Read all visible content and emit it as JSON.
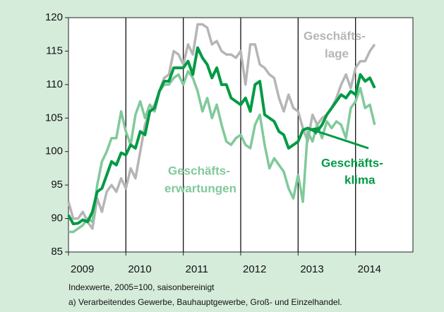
{
  "chart_data": {
    "type": "line",
    "x": [
      2009,
      2009.083,
      2009.167,
      2009.25,
      2009.333,
      2009.417,
      2009.5,
      2009.583,
      2009.667,
      2009.75,
      2009.833,
      2009.917,
      2010,
      2010.083,
      2010.167,
      2010.25,
      2010.333,
      2010.417,
      2010.5,
      2010.583,
      2010.667,
      2010.75,
      2010.833,
      2010.917,
      2011,
      2011.083,
      2011.167,
      2011.25,
      2011.333,
      2011.417,
      2011.5,
      2011.583,
      2011.667,
      2011.75,
      2011.833,
      2011.917,
      2012,
      2012.083,
      2012.167,
      2012.25,
      2012.333,
      2012.417,
      2012.5,
      2012.583,
      2012.667,
      2012.75,
      2012.833,
      2012.917,
      2013,
      2013.083,
      2013.167,
      2013.25,
      2013.333,
      2013.417,
      2013.5,
      2013.583,
      2013.667,
      2013.75,
      2013.833,
      2013.917,
      2014,
      2014.083,
      2014.167,
      2014.25,
      2014.333
    ],
    "series": [
      {
        "label": [
          "Geschäfts-",
          "lage"
        ],
        "color": "#b5b5b5",
        "values": [
          92.5,
          90,
          90,
          91,
          89.5,
          88.5,
          93,
          91,
          94,
          95,
          94,
          96,
          94.5,
          97.5,
          96,
          100,
          104,
          106,
          107,
          109,
          111,
          111.5,
          115,
          114.5,
          113,
          116,
          114.5,
          119,
          119,
          118.5,
          116,
          116.5,
          115,
          114.5,
          114.5,
          114,
          115,
          110,
          116,
          116,
          113,
          112.5,
          111.5,
          111,
          108,
          106,
          108.5,
          106.5,
          106,
          103.5,
          101.5,
          105.5,
          104,
          105,
          105.5,
          106.5,
          108,
          110,
          111.5,
          109.5,
          112.5,
          113.5,
          113.5,
          115,
          116
        ]
      },
      {
        "label": [
          "Geschäfts-",
          "erwartungen"
        ],
        "color": "#80c99b",
        "values": [
          88,
          88,
          88.5,
          89,
          90,
          89.5,
          95,
          98.5,
          100,
          102,
          102,
          106,
          103,
          101,
          105.5,
          107.5,
          105,
          107,
          106,
          109,
          110,
          110,
          111,
          111.5,
          110,
          112,
          111,
          109,
          106,
          108,
          105,
          107,
          104,
          101.5,
          101,
          102,
          102.5,
          101,
          100.5,
          104,
          105.5,
          101,
          97.5,
          99,
          98,
          97,
          94.5,
          93,
          96.5,
          92.5,
          103,
          101.5,
          104,
          102,
          104.5,
          103.5,
          104.5,
          104,
          102,
          106.5,
          107.5,
          109.5,
          106.5,
          107,
          104
        ]
      },
      {
        "label": [
          "Geschäfts-",
          "klima"
        ],
        "color": "#009a44",
        "values": [
          90.5,
          89.2,
          89.3,
          89.8,
          89.5,
          91,
          94,
          94.5,
          96.5,
          98.5,
          98,
          99.8,
          99.5,
          101,
          100.5,
          103,
          102.5,
          106,
          106.5,
          109,
          110.5,
          110.5,
          112.5,
          112.5,
          112.5,
          113.5,
          111.5,
          115.5,
          114,
          113,
          111,
          112.5,
          110,
          110,
          108,
          107.5,
          107,
          108,
          106,
          110,
          110.5,
          105.5,
          105,
          104.5,
          103,
          102.5,
          100.5,
          101,
          101.5,
          103.2,
          103.5,
          103.2,
          103,
          104,
          105.5,
          106.5,
          107.5,
          108.5,
          108,
          109,
          108.5,
          111.5,
          110.5,
          111,
          109.5
        ]
      }
    ],
    "xlim": [
      2009,
      2015
    ],
    "xticks": [
      2009,
      2010,
      2011,
      2012,
      2013,
      2014
    ],
    "ylim": [
      85,
      120
    ],
    "yticks": [
      85,
      90,
      95,
      100,
      105,
      110,
      115,
      120
    ],
    "grid": "x",
    "notes": [
      "Indexwerte, 2005=100, saisonbereinigt",
      "a) Verarbeitendes Gewerbe, Bauhauptgewerbe, Groß- und Einzelhandel."
    ]
  }
}
